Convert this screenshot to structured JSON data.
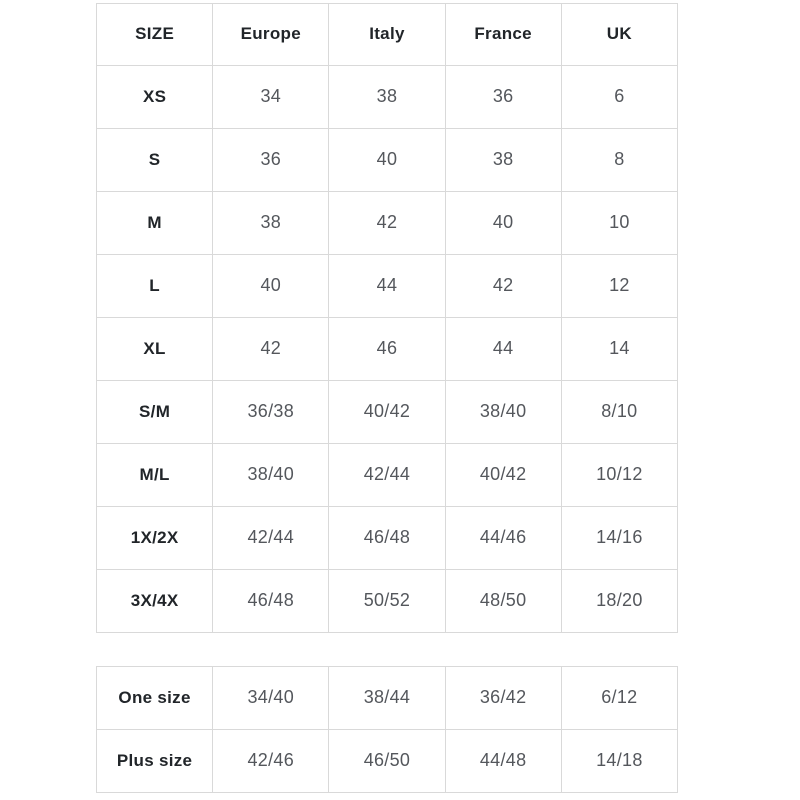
{
  "colors": {
    "background": "#ffffff",
    "border": "#d9d9d9",
    "header_text": "#212529",
    "value_text": "#54575c"
  },
  "chart_data": {
    "type": "table",
    "columns": [
      "SIZE",
      "Europe",
      "Italy",
      "France",
      "UK"
    ],
    "rows": [
      {
        "label": "XS",
        "values": [
          "34",
          "38",
          "36",
          "6"
        ]
      },
      {
        "label": "S",
        "values": [
          "36",
          "40",
          "38",
          "8"
        ]
      },
      {
        "label": "M",
        "values": [
          "38",
          "42",
          "40",
          "10"
        ]
      },
      {
        "label": "L",
        "values": [
          "40",
          "44",
          "42",
          "12"
        ]
      },
      {
        "label": "XL",
        "values": [
          "42",
          "46",
          "44",
          "14"
        ]
      },
      {
        "label": "S/M",
        "values": [
          "36/38",
          "40/42",
          "38/40",
          "8/10"
        ]
      },
      {
        "label": "M/L",
        "values": [
          "38/40",
          "42/44",
          "40/42",
          "10/12"
        ]
      },
      {
        "label": "1X/2X",
        "values": [
          "42/44",
          "46/48",
          "44/46",
          "14/16"
        ]
      },
      {
        "label": "3X/4X",
        "values": [
          "46/48",
          "50/52",
          "48/50",
          "18/20"
        ]
      }
    ],
    "extra_rows": [
      {
        "label": "One size",
        "values": [
          "34/40",
          "38/44",
          "36/42",
          "6/12"
        ]
      },
      {
        "label": "Plus size",
        "values": [
          "42/46",
          "46/50",
          "44/48",
          "14/18"
        ]
      }
    ],
    "layout": {
      "grid": true,
      "legend": false
    }
  }
}
